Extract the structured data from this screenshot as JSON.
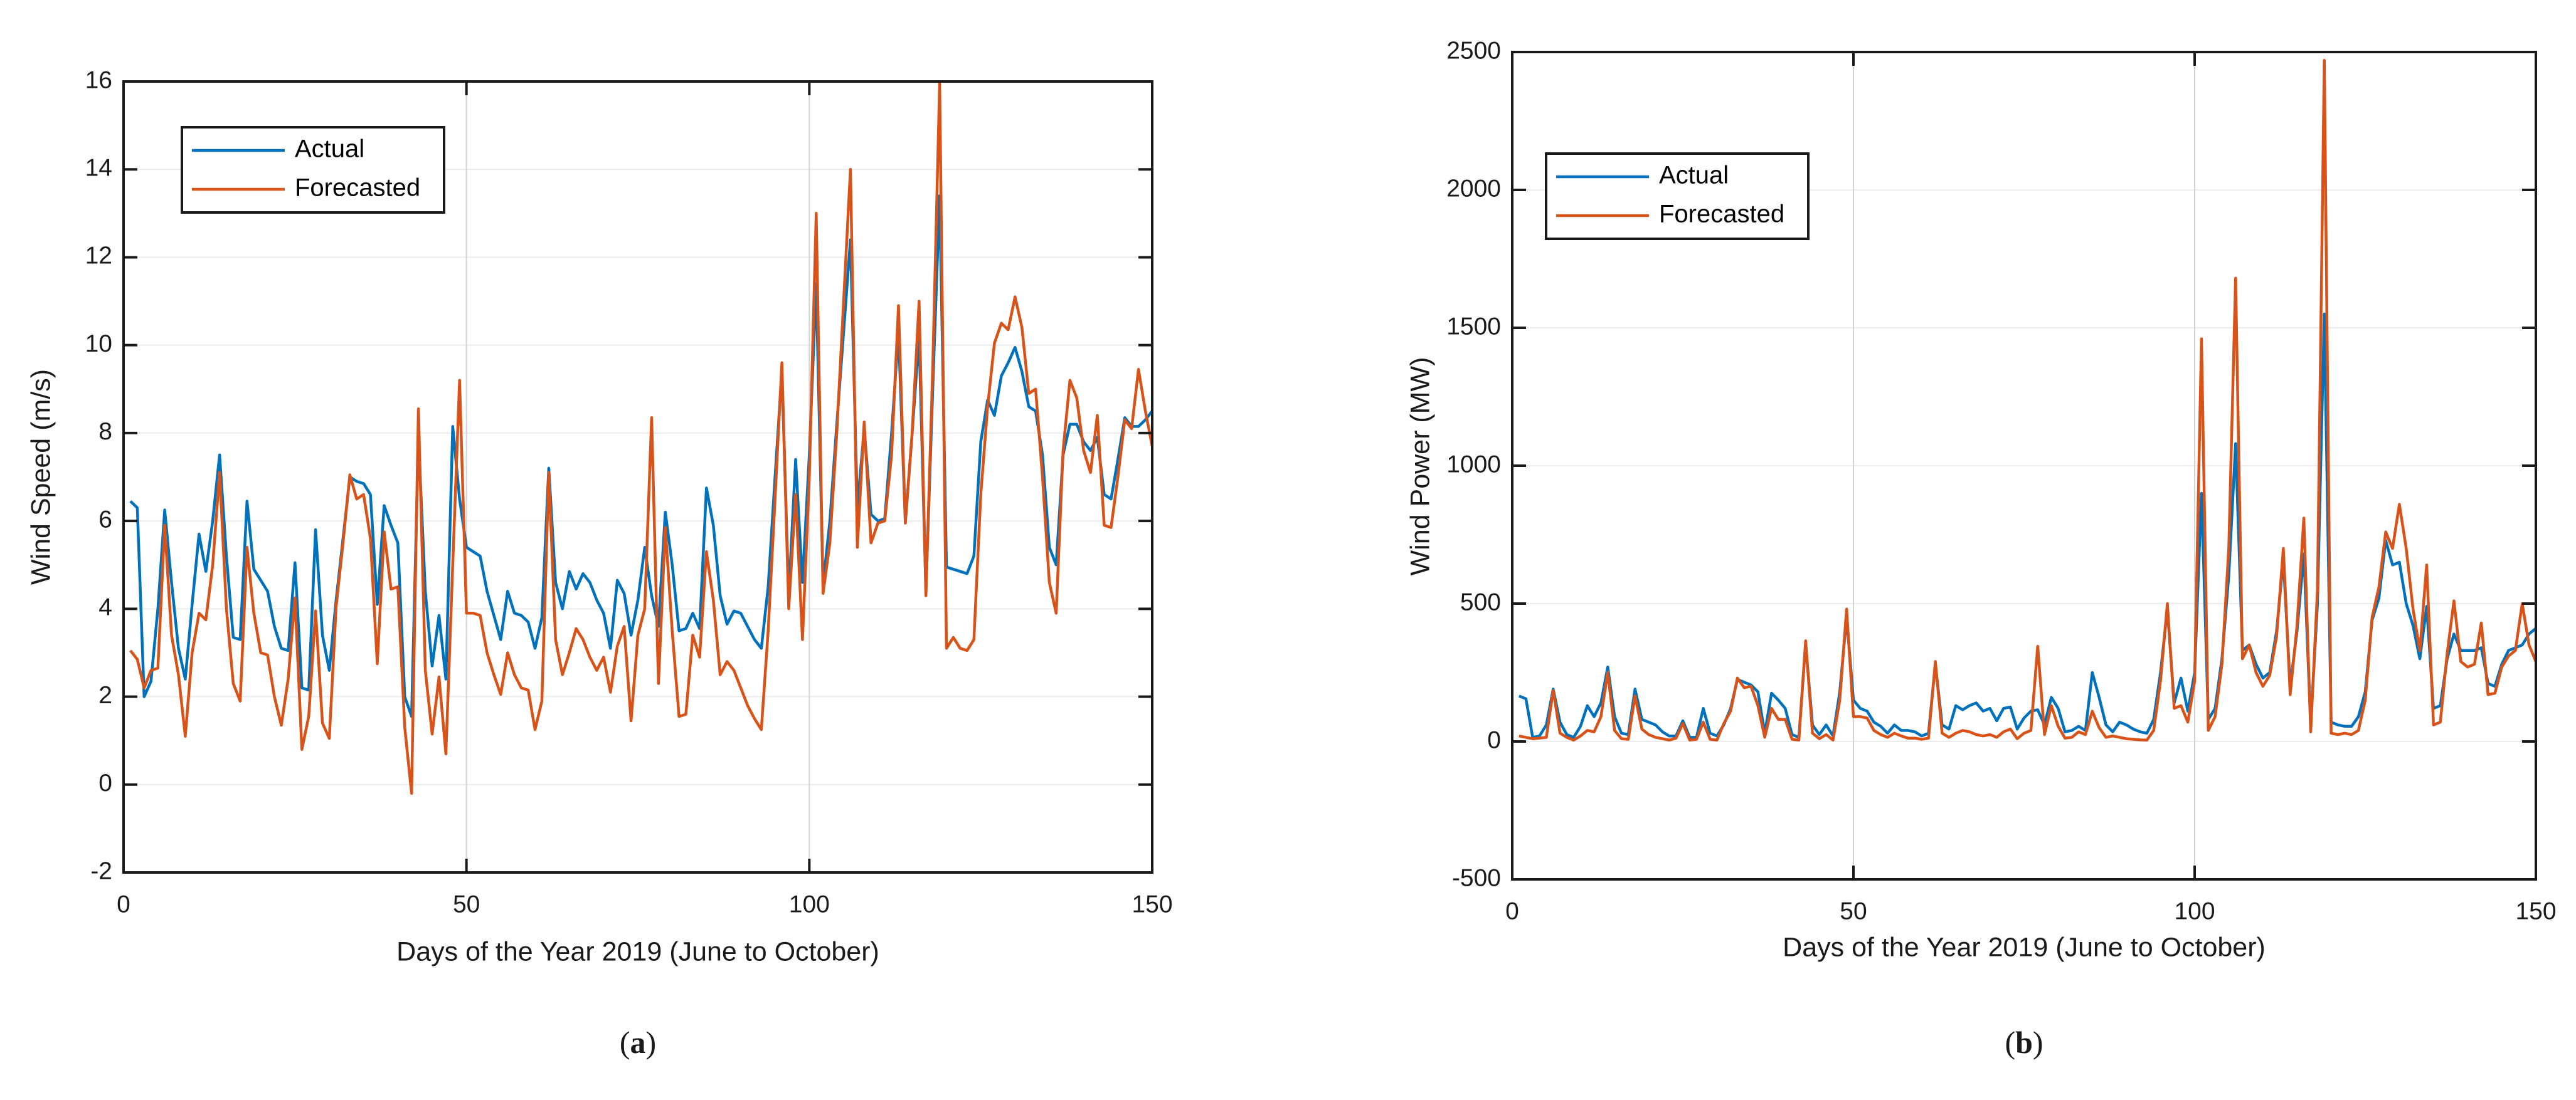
{
  "figure": {
    "background": "#ffffff",
    "axis_color": "#1a1a1a",
    "grid_color_h": "#ebebeb",
    "grid_color_v": "#d4d4d4"
  },
  "chart_data": [
    {
      "type": "line",
      "caption": "(a)",
      "caption_open": "(",
      "caption_letter": "a",
      "caption_close": ")",
      "xlabel": "Days of the Year 2019 (June to October)",
      "ylabel": "Wind Speed (m/s)",
      "xlim": [
        0,
        150
      ],
      "ylim": [
        -2,
        16
      ],
      "xticks": [
        0,
        50,
        100,
        150
      ],
      "yticks": [
        -2,
        0,
        2,
        4,
        6,
        8,
        10,
        12,
        14,
        16
      ],
      "grid": true,
      "legend_position": "upper-left-inside",
      "x_first_day": 1,
      "x_step": 1,
      "series": [
        {
          "name": "Actual",
          "color": "#0072BD",
          "values": [
            6.45,
            6.3,
            2.0,
            2.35,
            4.0,
            6.25,
            4.6,
            3.1,
            2.4,
            4.1,
            5.7,
            4.85,
            6.0,
            7.5,
            5.2,
            3.35,
            3.3,
            6.45,
            4.9,
            4.65,
            4.4,
            3.6,
            3.1,
            3.05,
            5.05,
            2.2,
            2.15,
            5.8,
            3.4,
            2.6,
            4.2,
            5.6,
            7.0,
            6.9,
            6.85,
            6.6,
            4.1,
            6.35,
            5.9,
            5.5,
            2.0,
            1.55,
            7.9,
            4.4,
            2.7,
            3.85,
            2.4,
            8.15,
            6.5,
            5.4,
            5.3,
            5.2,
            4.4,
            3.85,
            3.3,
            4.4,
            3.9,
            3.85,
            3.7,
            3.1,
            3.8,
            7.2,
            4.6,
            4.0,
            4.85,
            4.45,
            4.8,
            4.6,
            4.2,
            3.9,
            3.1,
            4.65,
            4.35,
            3.4,
            4.2,
            5.4,
            4.3,
            3.6,
            6.2,
            5.0,
            3.5,
            3.55,
            3.9,
            3.55,
            6.75,
            5.9,
            4.3,
            3.65,
            3.95,
            3.9,
            3.6,
            3.3,
            3.1,
            4.5,
            7.0,
            9.4,
            4.3,
            7.4,
            4.6,
            7.5,
            11.4,
            4.55,
            6.0,
            8.2,
            10.3,
            12.4,
            6.3,
            8.1,
            6.15,
            6.0,
            6.05,
            8.0,
            10.3,
            5.95,
            8.0,
            10.2,
            4.4,
            9.0,
            13.4,
            4.95,
            4.9,
            4.85,
            4.8,
            5.2,
            7.8,
            8.75,
            8.4,
            9.3,
            9.6,
            9.95,
            9.4,
            8.6,
            8.5,
            7.5,
            5.4,
            5.0,
            7.5,
            8.2,
            8.2,
            7.8,
            7.6,
            7.9,
            6.6,
            6.5,
            7.4,
            8.35,
            8.15,
            8.15,
            8.3,
            8.5
          ]
        },
        {
          "name": "Forecasted",
          "color": "#D95319",
          "values": [
            3.05,
            2.85,
            2.2,
            2.6,
            2.65,
            5.9,
            3.4,
            2.5,
            1.1,
            3.0,
            3.9,
            3.75,
            5.0,
            7.1,
            4.0,
            2.3,
            1.9,
            5.4,
            3.9,
            3.0,
            2.95,
            2.0,
            1.35,
            2.4,
            4.25,
            0.8,
            1.55,
            3.95,
            1.4,
            1.05,
            4.05,
            5.5,
            7.05,
            6.5,
            6.6,
            5.6,
            2.75,
            5.75,
            4.45,
            4.5,
            1.3,
            -0.2,
            8.55,
            2.6,
            1.15,
            2.45,
            0.7,
            5.0,
            9.2,
            3.9,
            3.9,
            3.85,
            3.0,
            2.5,
            2.05,
            3.0,
            2.5,
            2.2,
            2.15,
            1.25,
            1.9,
            7.1,
            3.3,
            2.5,
            3.0,
            3.55,
            3.3,
            2.9,
            2.6,
            2.9,
            2.1,
            3.15,
            3.6,
            1.45,
            3.4,
            4.0,
            8.35,
            2.3,
            5.85,
            3.5,
            1.55,
            1.6,
            3.4,
            2.9,
            5.3,
            4.2,
            2.5,
            2.8,
            2.6,
            2.2,
            1.8,
            1.5,
            1.25,
            3.5,
            6.5,
            9.6,
            4.0,
            6.6,
            3.3,
            7.0,
            13.0,
            4.35,
            5.5,
            8.0,
            11.0,
            14.0,
            5.4,
            8.25,
            5.5,
            5.95,
            6.0,
            7.5,
            10.9,
            5.95,
            8.0,
            11.0,
            4.3,
            9.5,
            15.95,
            3.1,
            3.35,
            3.1,
            3.05,
            3.3,
            6.6,
            8.6,
            10.05,
            10.5,
            10.35,
            11.1,
            10.4,
            8.9,
            9.0,
            7.0,
            4.6,
            3.9,
            7.6,
            9.2,
            8.8,
            7.6,
            7.1,
            8.4,
            5.9,
            5.85,
            7.0,
            8.3,
            8.1,
            9.45,
            8.5,
            7.7
          ]
        }
      ]
    },
    {
      "type": "line",
      "caption": "(b)",
      "caption_open": "(",
      "caption_letter": "b",
      "caption_close": ")",
      "xlabel": "Days of the Year 2019 (June to October)",
      "ylabel": "Wind Power (MW)",
      "xlim": [
        0,
        150
      ],
      "ylim": [
        -500,
        2500
      ],
      "xticks": [
        0,
        50,
        100,
        150
      ],
      "yticks": [
        -500,
        0,
        500,
        1000,
        1500,
        2000,
        2500
      ],
      "grid": true,
      "legend_position": "upper-left-inside",
      "x_first_day": 1,
      "x_step": 1,
      "series": [
        {
          "name": "Actual",
          "color": "#0072BD",
          "values": [
            165,
            155,
            15,
            20,
            60,
            190,
            70,
            25,
            15,
            55,
            130,
            90,
            140,
            270,
            90,
            30,
            25,
            190,
            80,
            70,
            60,
            35,
            20,
            20,
            75,
            15,
            15,
            120,
            30,
            20,
            60,
            120,
            225,
            215,
            205,
            180,
            30,
            175,
            150,
            120,
            25,
            15,
            355,
            60,
            25,
            60,
            20,
            180,
            450,
            150,
            120,
            110,
            70,
            55,
            30,
            60,
            40,
            40,
            35,
            20,
            30,
            280,
            60,
            45,
            130,
            115,
            130,
            140,
            110,
            120,
            75,
            120,
            125,
            45,
            85,
            110,
            115,
            60,
            160,
            120,
            35,
            40,
            55,
            40,
            250,
            160,
            60,
            35,
            70,
            60,
            45,
            35,
            30,
            80,
            250,
            480,
            140,
            230,
            110,
            250,
            900,
            80,
            120,
            300,
            600,
            1080,
            330,
            350,
            280,
            230,
            250,
            400,
            660,
            200,
            400,
            680,
            60,
            500,
            1550,
            70,
            60,
            55,
            55,
            90,
            180,
            440,
            520,
            730,
            640,
            650,
            500,
            420,
            300,
            490,
            120,
            130,
            300,
            390,
            330,
            330,
            330,
            340,
            210,
            200,
            280,
            330,
            340,
            350,
            390,
            410
          ]
        },
        {
          "name": "Forecasted",
          "color": "#D95319",
          "values": [
            20,
            15,
            10,
            12,
            15,
            185,
            30,
            15,
            5,
            20,
            40,
            35,
            90,
            250,
            40,
            10,
            8,
            165,
            45,
            25,
            15,
            10,
            5,
            12,
            65,
            5,
            8,
            70,
            8,
            5,
            65,
            110,
            230,
            195,
            200,
            130,
            15,
            120,
            80,
            80,
            8,
            5,
            365,
            30,
            10,
            25,
            5,
            150,
            480,
            90,
            90,
            85,
            40,
            25,
            15,
            30,
            20,
            12,
            12,
            8,
            12,
            290,
            30,
            15,
            30,
            40,
            35,
            25,
            20,
            25,
            15,
            35,
            45,
            10,
            30,
            40,
            345,
            25,
            130,
            55,
            12,
            15,
            35,
            25,
            110,
            50,
            15,
            20,
            15,
            10,
            8,
            6,
            5,
            40,
            220,
            500,
            120,
            130,
            70,
            220,
            1460,
            40,
            90,
            280,
            700,
            1680,
            300,
            350,
            250,
            200,
            240,
            380,
            700,
            170,
            420,
            810,
            35,
            550,
            2470,
            30,
            25,
            30,
            25,
            40,
            150,
            450,
            560,
            760,
            700,
            860,
            700,
            480,
            330,
            640,
            60,
            70,
            320,
            510,
            290,
            270,
            280,
            430,
            170,
            175,
            270,
            310,
            330,
            500,
            350,
            290
          ]
        }
      ]
    }
  ]
}
